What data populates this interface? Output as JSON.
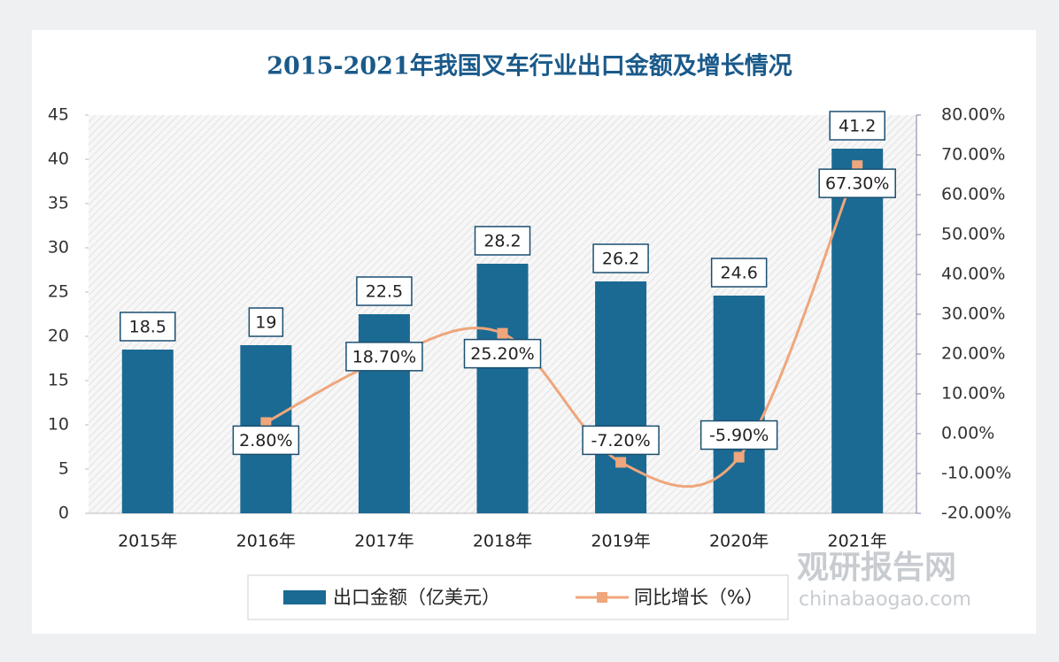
{
  "chart_data": {
    "type": "bar-line",
    "title": "2015-2021年我国叉车行业出口金额及增长情况",
    "categories": [
      "2015年",
      "2016年",
      "2017年",
      "2018年",
      "2019年",
      "2020年",
      "2021年"
    ],
    "series": [
      {
        "name": "出口金额（亿美元）",
        "type": "bar",
        "color": "#1b6a93",
        "values": [
          18.5,
          19,
          22.5,
          28.2,
          26.2,
          24.6,
          41.2
        ]
      },
      {
        "name": "同比增长（%）",
        "type": "line",
        "axis": "y2",
        "color": "#efa67c",
        "values": [
          null,
          2.8,
          18.7,
          25.2,
          -7.2,
          -5.9,
          67.3
        ],
        "value_labels": [
          null,
          "2.80%",
          "18.70%",
          "25.20%",
          "-7.20%",
          "-5.90%",
          "67.30%"
        ]
      }
    ],
    "ylim": [
      0,
      45
    ],
    "yticks": [
      0,
      5,
      10,
      15,
      20,
      25,
      30,
      35,
      40,
      45
    ],
    "y2lim": [
      -20,
      80
    ],
    "y2ticks": [
      {
        "value": -20,
        "label": "-20.00%"
      },
      {
        "value": -10,
        "label": "-10.00%"
      },
      {
        "value": 0,
        "label": "0.00%"
      },
      {
        "value": 10,
        "label": "10.00%"
      },
      {
        "value": 20,
        "label": "20.00%"
      },
      {
        "value": 30,
        "label": "30.00%"
      },
      {
        "value": 40,
        "label": "40.00%"
      },
      {
        "value": 50,
        "label": "50.00%"
      },
      {
        "value": 60,
        "label": "60.00%"
      },
      {
        "value": 70,
        "label": "70.00%"
      },
      {
        "value": 80,
        "label": "80.00%"
      }
    ],
    "legend": "bottom",
    "watermark": [
      "观研报告网",
      "chinabaogao.com"
    ]
  }
}
